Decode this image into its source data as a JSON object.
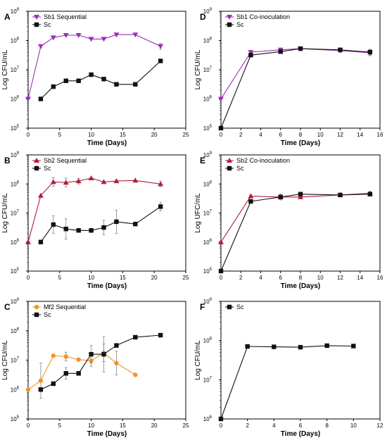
{
  "chart_data": [
    {
      "panel": "A",
      "type": "line",
      "log_y": true,
      "xlabel": "Time (Days)",
      "ylabel": "Log CFU/mL",
      "xlim": [
        0,
        25
      ],
      "ylim": [
        5,
        9
      ],
      "xticks": [
        0,
        5,
        10,
        15,
        20,
        25
      ],
      "yticks": [
        "10",
        "10",
        "10",
        "10",
        "10"
      ],
      "yexps": [
        "5",
        "6",
        "7",
        "8",
        "9"
      ],
      "legend_position": "top-left",
      "series": [
        {
          "name": "Sb1 Sequential",
          "color": "#9b30b5",
          "marker": "triangle-down",
          "x": [
            0,
            2,
            4,
            6,
            8,
            10,
            12,
            14,
            17,
            21
          ],
          "y": [
            6.0,
            7.8,
            8.1,
            8.18,
            8.18,
            8.05,
            8.05,
            8.2,
            8.2,
            7.8
          ],
          "err": [
            0,
            0,
            0,
            0,
            0,
            0,
            0,
            0,
            0,
            0.1
          ]
        },
        {
          "name": "Sc",
          "color": "#111111",
          "marker": "square",
          "x": [
            2,
            4,
            6,
            8,
            10,
            12,
            14,
            17,
            21
          ],
          "y": [
            6.0,
            6.42,
            6.62,
            6.62,
            6.83,
            6.68,
            6.5,
            6.5,
            7.3
          ],
          "err": [
            0,
            0,
            0,
            0,
            0,
            0,
            0,
            0,
            0
          ]
        }
      ]
    },
    {
      "panel": "B",
      "type": "line",
      "log_y": true,
      "xlabel": "Time (Days)",
      "ylabel": "Log CFU/mL",
      "xlim": [
        0,
        25
      ],
      "ylim": [
        5,
        9
      ],
      "xticks": [
        0,
        5,
        10,
        15,
        20,
        25
      ],
      "yticks": [
        "10",
        "10",
        "10",
        "10",
        "10"
      ],
      "yexps": [
        "5",
        "6",
        "7",
        "8",
        "9"
      ],
      "legend_position": "top-left",
      "series": [
        {
          "name": "Sb2 Sequential",
          "color": "#b01e3c",
          "marker": "triangle-up",
          "x": [
            0,
            2,
            4,
            6,
            8,
            10,
            12,
            14,
            17,
            21
          ],
          "y": [
            6.0,
            7.6,
            8.07,
            8.05,
            8.1,
            8.2,
            8.07,
            8.1,
            8.12,
            8.0
          ],
          "err": [
            0,
            0,
            0.15,
            0.15,
            0.1,
            0,
            0,
            0,
            0,
            0.1
          ]
        },
        {
          "name": "Sc",
          "color": "#111111",
          "marker": "square",
          "x": [
            2,
            4,
            6,
            8,
            10,
            12,
            14,
            17,
            21
          ],
          "y": [
            6.0,
            6.6,
            6.45,
            6.4,
            6.4,
            6.5,
            6.7,
            6.62,
            7.22
          ],
          "err": [
            0,
            0.3,
            0.35,
            0,
            0,
            0.25,
            0.4,
            0,
            0.15
          ]
        }
      ]
    },
    {
      "panel": "C",
      "type": "line",
      "log_y": true,
      "xlabel": "Time (Days)",
      "ylabel": "Log CFU/mL",
      "xlim": [
        0,
        25
      ],
      "ylim": [
        5,
        9
      ],
      "xticks": [
        0,
        5,
        10,
        15,
        20,
        25
      ],
      "yticks": [
        "10",
        "10",
        "10",
        "10",
        "10"
      ],
      "yexps": [
        "5",
        "6",
        "7",
        "8",
        "9"
      ],
      "legend_position": "top-left",
      "series": [
        {
          "name": "Mf2 Sequential",
          "color": "#f0952a",
          "marker": "circle",
          "x": [
            0,
            2,
            4,
            6,
            8,
            10,
            12,
            14,
            17
          ],
          "y": [
            6.0,
            6.3,
            7.15,
            7.12,
            7.02,
            6.98,
            7.25,
            6.9,
            6.5
          ],
          "err": [
            0,
            0.6,
            0,
            0.15,
            0,
            0.2,
            0.3,
            0.4,
            0
          ]
        },
        {
          "name": "Sc",
          "color": "#111111",
          "marker": "square",
          "x": [
            2,
            4,
            6,
            8,
            10,
            12,
            14,
            17,
            21
          ],
          "y": [
            6.0,
            6.2,
            6.55,
            6.55,
            7.2,
            7.2,
            7.5,
            7.78,
            7.85
          ],
          "err": [
            0,
            0,
            0.2,
            0,
            0.3,
            0.6,
            0,
            0,
            0
          ]
        }
      ]
    },
    {
      "panel": "D",
      "type": "line",
      "log_y": true,
      "xlabel": "Time (Days)",
      "ylabel": "Log CFU/mL",
      "xlim": [
        0,
        16
      ],
      "ylim": [
        5,
        9
      ],
      "xticks": [
        0,
        2,
        4,
        6,
        8,
        10,
        12,
        14,
        16
      ],
      "yticks": [
        "10",
        "10",
        "10",
        "10",
        "10"
      ],
      "yexps": [
        "5",
        "6",
        "7",
        "8",
        "9"
      ],
      "legend_position": "top-left",
      "series": [
        {
          "name": "Sb1 Co-inoculation",
          "color": "#9b30b5",
          "marker": "triangle-down",
          "x": [
            0,
            3,
            6,
            8,
            12,
            15
          ],
          "y": [
            6.0,
            7.6,
            7.68,
            7.72,
            7.65,
            7.58
          ],
          "err": [
            0,
            0.05,
            0.05,
            0.05,
            0.05,
            0.1
          ]
        },
        {
          "name": "Sc",
          "color": "#111111",
          "marker": "square",
          "x": [
            0,
            3,
            6,
            8,
            12,
            15
          ],
          "y": [
            5.0,
            7.5,
            7.62,
            7.72,
            7.68,
            7.6
          ],
          "err": [
            0,
            0,
            0.05,
            0,
            0,
            0.1
          ]
        }
      ]
    },
    {
      "panel": "E",
      "type": "line",
      "log_y": true,
      "xlabel": "Time (Days)",
      "ylabel": "Log UFC/mL",
      "xlim": [
        0,
        16
      ],
      "ylim": [
        5,
        9
      ],
      "xticks": [
        0,
        2,
        4,
        6,
        8,
        10,
        12,
        14,
        16
      ],
      "yticks": [
        "10",
        "10",
        "10",
        "10",
        "10"
      ],
      "yexps": [
        "5",
        "6",
        "7",
        "8",
        "9"
      ],
      "legend_position": "top-left",
      "series": [
        {
          "name": "Sb2 Co-inoculation",
          "color": "#b01e3c",
          "marker": "triangle-up",
          "x": [
            0,
            3,
            6,
            8,
            12,
            15
          ],
          "y": [
            6.0,
            7.58,
            7.55,
            7.55,
            7.62,
            7.68
          ],
          "err": [
            0,
            0.05,
            0.1,
            0.05,
            0.05,
            0.05
          ]
        },
        {
          "name": "Sc",
          "color": "#111111",
          "marker": "square",
          "x": [
            0,
            3,
            6,
            8,
            12,
            15
          ],
          "y": [
            5.0,
            7.4,
            7.55,
            7.65,
            7.62,
            7.65
          ],
          "err": [
            0,
            0,
            0.1,
            0,
            0,
            0.05
          ]
        }
      ]
    },
    {
      "panel": "F",
      "type": "line",
      "log_y": true,
      "xlabel": "Time (Days)",
      "ylabel": "Log CFU/mL",
      "xlim": [
        0,
        12
      ],
      "ylim": [
        6,
        9
      ],
      "xticks": [
        0,
        2,
        4,
        6,
        8,
        10,
        12
      ],
      "yticks": [
        "10",
        "10",
        "10",
        "10"
      ],
      "yexps": [
        "6",
        "7",
        "8",
        "9"
      ],
      "legend_position": "top-left",
      "series": [
        {
          "name": "Sc",
          "color": "#111111",
          "marker": "square",
          "x": [
            0,
            2,
            4,
            6,
            8,
            10
          ],
          "y": [
            6.0,
            7.85,
            7.84,
            7.83,
            7.87,
            7.86
          ],
          "err": [
            0,
            0,
            0,
            0.03,
            0,
            0
          ]
        }
      ]
    }
  ]
}
